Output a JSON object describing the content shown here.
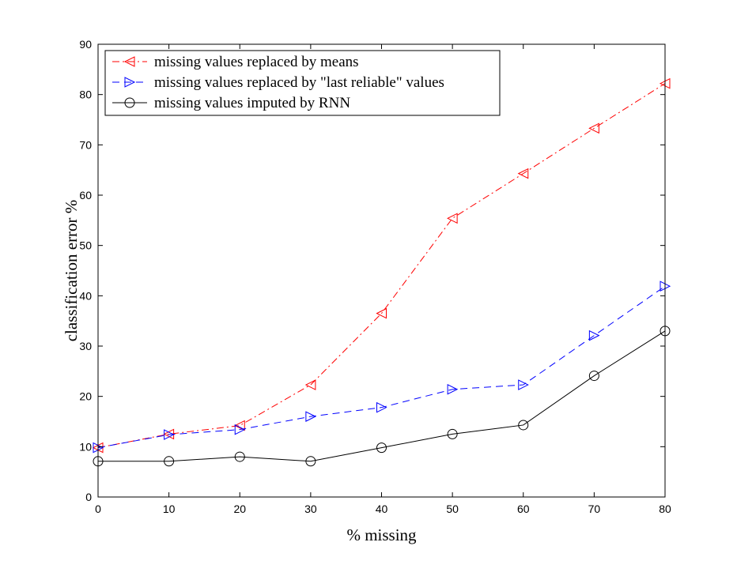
{
  "chart_data": {
    "type": "line",
    "xlabel": "% missing",
    "ylabel": "classification error %",
    "xlim": [
      0,
      80
    ],
    "ylim": [
      0,
      90
    ],
    "xticks": [
      0,
      10,
      20,
      30,
      40,
      50,
      60,
      70,
      80
    ],
    "yticks": [
      0,
      10,
      20,
      30,
      40,
      50,
      60,
      70,
      80,
      90
    ],
    "x": [
      0,
      10,
      20,
      30,
      40,
      50,
      60,
      70,
      80
    ],
    "grid": false,
    "legend_position": "top-left",
    "series": [
      {
        "name": "missing values replaced by means",
        "color": "#ff0000",
        "line_style": "dashdot",
        "marker": "triangle-left",
        "values": [
          9.8,
          12.5,
          14.2,
          22.3,
          36.5,
          55.4,
          64.3,
          73.3,
          82.2
        ]
      },
      {
        "name": "missing values replaced by \"last reliable\" values",
        "color": "#0000ff",
        "line_style": "dashed",
        "marker": "triangle-right",
        "values": [
          9.8,
          12.4,
          13.4,
          16.0,
          17.8,
          21.4,
          22.3,
          32.1,
          41.9
        ]
      },
      {
        "name": "missing values imputed by RNN",
        "color": "#000000",
        "line_style": "solid",
        "marker": "circle",
        "values": [
          7.1,
          7.1,
          8.0,
          7.1,
          9.8,
          12.5,
          14.3,
          24.1,
          33.0
        ]
      }
    ]
  }
}
